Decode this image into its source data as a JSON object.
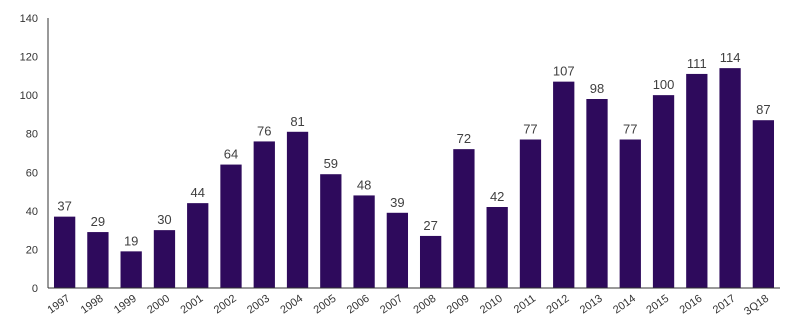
{
  "chart_data": {
    "type": "bar",
    "title": "",
    "xlabel": "",
    "ylabel": "",
    "categories": [
      "1997",
      "1998",
      "1999",
      "2000",
      "2001",
      "2002",
      "2003",
      "2004",
      "2005",
      "2006",
      "2007",
      "2008",
      "2009",
      "2010",
      "2011",
      "2012",
      "2013",
      "2014",
      "2015",
      "2016",
      "2017",
      "3Q18"
    ],
    "values": [
      37,
      29,
      19,
      30,
      44,
      64,
      76,
      81,
      59,
      48,
      39,
      27,
      72,
      42,
      77,
      107,
      98,
      77,
      100,
      111,
      114,
      87
    ],
    "ylim": [
      0,
      140
    ],
    "yticks": [
      0,
      20,
      40,
      60,
      80,
      100,
      120,
      140
    ],
    "grid": false,
    "legend": "none",
    "data_labels": true,
    "bar_color": "#2e0a5c"
  }
}
